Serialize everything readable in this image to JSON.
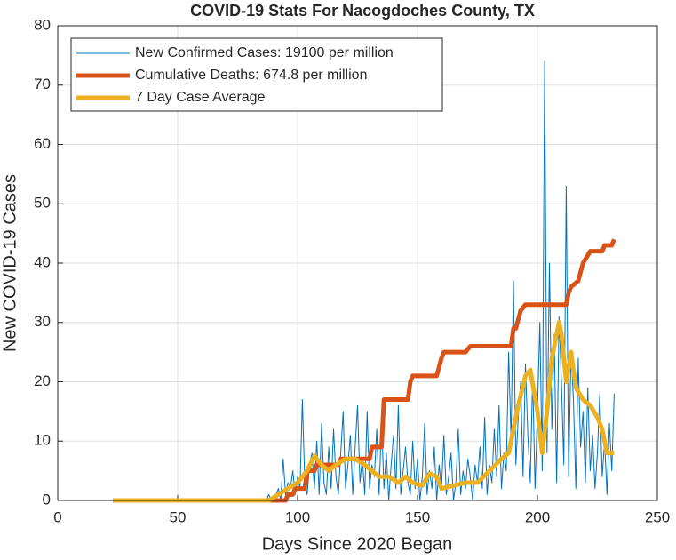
{
  "chart_data": {
    "type": "line",
    "title": "COVID-19 Stats For Nacogdoches County, TX",
    "x_label": "Days Since 2020 Began",
    "y_label": "New COVID-19 Cases",
    "xlim": [
      0,
      250
    ],
    "xticks": [
      0,
      50,
      100,
      150,
      200,
      250
    ],
    "ylim": [
      0,
      80
    ],
    "yticks": [
      0,
      10,
      20,
      30,
      40,
      50,
      60,
      70,
      80
    ],
    "grid": true,
    "legend": "upper left",
    "series": [
      {
        "name": "New Confirmed Cases: 19100 per million",
        "color": "#0072bd",
        "width": 1,
        "x": [
          23,
          85,
          86,
          87,
          88,
          89,
          90,
          91,
          92,
          93,
          94,
          95,
          96,
          97,
          98,
          99,
          100,
          101,
          102,
          103,
          104,
          105,
          106,
          107,
          108,
          109,
          110,
          111,
          112,
          113,
          114,
          115,
          116,
          117,
          118,
          119,
          120,
          121,
          122,
          123,
          124,
          125,
          126,
          127,
          128,
          129,
          130,
          131,
          132,
          133,
          134,
          135,
          136,
          137,
          138,
          139,
          140,
          141,
          142,
          143,
          144,
          145,
          146,
          147,
          148,
          149,
          150,
          151,
          152,
          153,
          154,
          155,
          156,
          157,
          158,
          159,
          160,
          161,
          162,
          163,
          164,
          165,
          166,
          167,
          168,
          169,
          170,
          171,
          172,
          173,
          174,
          175,
          176,
          177,
          178,
          179,
          180,
          181,
          182,
          183,
          184,
          185,
          186,
          187,
          188,
          189,
          190,
          191,
          192,
          193,
          194,
          195,
          196,
          197,
          198,
          199,
          200,
          201,
          202,
          203,
          204,
          205,
          206,
          207,
          208,
          209,
          210,
          211,
          212,
          213,
          214,
          215,
          216,
          217,
          218,
          219,
          220,
          221,
          222,
          223,
          224,
          225,
          226,
          227,
          228,
          229,
          230,
          231,
          232
        ],
        "values": [
          0,
          0,
          0,
          0,
          1,
          0,
          0,
          1,
          2,
          0,
          7,
          1,
          3,
          2,
          5,
          1,
          4,
          2,
          17,
          3,
          1,
          6,
          8,
          2,
          10,
          1,
          13,
          3,
          1,
          9,
          2,
          12,
          4,
          1,
          8,
          15,
          2,
          6,
          11,
          1,
          9,
          16,
          3,
          7,
          1,
          15,
          2,
          6,
          4,
          12,
          1,
          14,
          2,
          8,
          0,
          6,
          11,
          2,
          16,
          1,
          5,
          9,
          3,
          1,
          10,
          2,
          7,
          0,
          4,
          13,
          1,
          5,
          2,
          9,
          0,
          6,
          2,
          11,
          1,
          4,
          8,
          0,
          3,
          12,
          1,
          5,
          2,
          7,
          4,
          0,
          6,
          3,
          9,
          2,
          14,
          1,
          6,
          3,
          12,
          4,
          16,
          2,
          8,
          5,
          25,
          10,
          37,
          6,
          14,
          20,
          4,
          23,
          11,
          3,
          21,
          2,
          15,
          30,
          5,
          74,
          8,
          40,
          12,
          28,
          3,
          31,
          20,
          6,
          53,
          4,
          25,
          17,
          2,
          24,
          9,
          15,
          3,
          19,
          5,
          11,
          2,
          8,
          18,
          4,
          10,
          1,
          13,
          5,
          18
        ]
      },
      {
        "name": "Cumulative Deaths: 674.8 per million",
        "color": "#d95319",
        "width": 5,
        "x": [
          23,
          95,
          96,
          98,
          99,
          103,
          104,
          107,
          108,
          117,
          118,
          130,
          131,
          135,
          136,
          146,
          147,
          148,
          158,
          160,
          161,
          170,
          172,
          183,
          189,
          190,
          191,
          193,
          195,
          212,
          213,
          214,
          217,
          219,
          222,
          227,
          228,
          231,
          232
        ],
        "values": [
          0,
          0,
          1,
          1,
          2,
          2,
          5,
          5,
          6,
          6,
          7,
          7,
          9,
          9,
          17,
          17,
          20,
          21,
          21,
          24,
          25,
          25,
          26,
          26,
          26,
          29,
          29,
          32,
          33,
          33,
          35,
          36,
          37,
          40,
          42,
          42,
          43,
          43,
          44
        ]
      },
      {
        "name": "7 Day Case Average",
        "color": "#edb120",
        "width": 5,
        "x": [
          23,
          88,
          92,
          96,
          100,
          104,
          107,
          110,
          113,
          116,
          120,
          124,
          128,
          131,
          134,
          138,
          142,
          145,
          148,
          152,
          155,
          158,
          160,
          165,
          170,
          175,
          180,
          185,
          188,
          192,
          195,
          197,
          200,
          202,
          204,
          206,
          209,
          210,
          212,
          214,
          216,
          219,
          222,
          225,
          227,
          229,
          232
        ],
        "values": [
          0,
          0,
          1,
          2,
          3,
          5,
          7.5,
          6,
          5,
          6,
          7,
          7,
          6,
          5,
          4,
          4,
          3,
          4,
          3,
          2.5,
          4.5,
          4,
          2,
          2.5,
          3,
          3,
          5,
          7,
          8,
          16,
          21,
          22,
          15,
          8,
          15,
          24,
          30,
          28,
          20,
          25,
          19,
          17,
          16,
          14,
          12,
          8,
          8
        ]
      }
    ]
  }
}
